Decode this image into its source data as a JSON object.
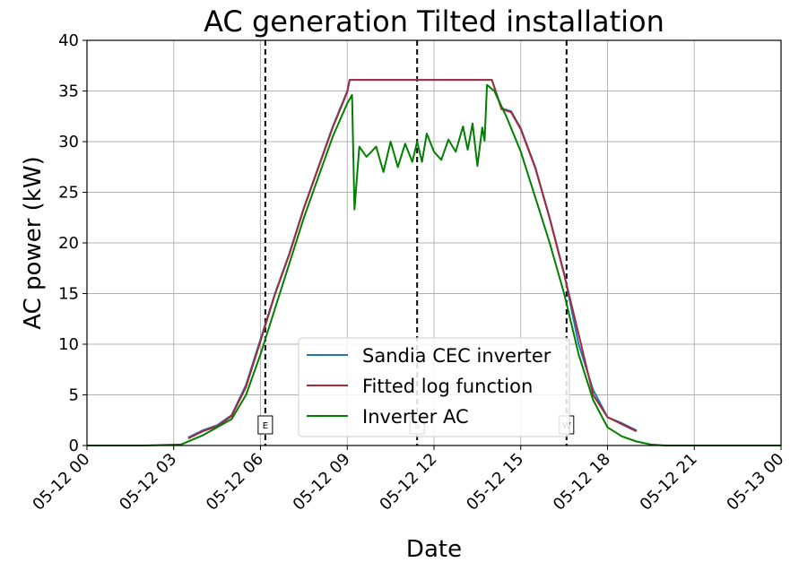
{
  "chart_data": {
    "type": "line",
    "title": "AC generation Tilted installation",
    "xlabel": "Date",
    "ylabel": "AC power (kW)",
    "xlim": [
      "05-12 00",
      "05-13 00"
    ],
    "ylim": [
      0,
      40
    ],
    "grid": true,
    "legend_position": "lower-center",
    "x_ticks": [
      "05-12 00",
      "05-12 03",
      "05-12 06",
      "05-12 09",
      "05-12 12",
      "05-12 15",
      "05-12 18",
      "05-12 21",
      "05-13 00"
    ],
    "y_ticks": [
      "0",
      "5",
      "10",
      "15",
      "20",
      "25",
      "30",
      "35",
      "40"
    ],
    "vertical_markers": [
      {
        "time": "05-12 06:10",
        "label": "E"
      },
      {
        "time": "05-12 11:25",
        "label": "S"
      },
      {
        "time": "05-12 16:35",
        "label": "W"
      }
    ],
    "series": [
      {
        "name": "Sandia CEC inverter",
        "color": "#1f77b4",
        "points": [
          [
            "05-12 03:30",
            0.8
          ],
          [
            "05-12 04:00",
            1.5
          ],
          [
            "05-12 04:30",
            2.0
          ],
          [
            "05-12 05:00",
            3.0
          ],
          [
            "05-12 05:30",
            6.0
          ],
          [
            "05-12 06:00",
            10.5
          ],
          [
            "05-12 06:30",
            15.0
          ],
          [
            "05-12 07:00",
            19.0
          ],
          [
            "05-12 07:30",
            23.5
          ],
          [
            "05-12 08:00",
            27.5
          ],
          [
            "05-12 08:30",
            31.5
          ],
          [
            "05-12 09:00",
            35.0
          ],
          [
            "05-12 09:05",
            36.1
          ],
          [
            "05-12 10:00",
            36.1
          ],
          [
            "05-12 11:00",
            36.1
          ],
          [
            "05-12 12:00",
            36.1
          ],
          [
            "05-12 13:00",
            36.1
          ],
          [
            "05-12 14:00",
            36.1
          ],
          [
            "05-12 14:20",
            33.3
          ],
          [
            "05-12 14:40",
            33.0
          ],
          [
            "05-12 15:00",
            31.3
          ],
          [
            "05-12 15:30",
            27.5
          ],
          [
            "05-12 16:00",
            22.5
          ],
          [
            "05-12 16:30",
            17.0
          ],
          [
            "05-12 17:00",
            10.0
          ],
          [
            "05-12 17:30",
            5.5
          ],
          [
            "05-12 18:00",
            2.8
          ],
          [
            "05-12 18:30",
            2.2
          ],
          [
            "05-12 19:00",
            1.5
          ]
        ]
      },
      {
        "name": "Fitted log function",
        "color": "#a52a3a",
        "points": [
          [
            "05-12 03:30",
            0.7
          ],
          [
            "05-12 04:00",
            1.4
          ],
          [
            "05-12 04:30",
            1.9
          ],
          [
            "05-12 05:00",
            2.9
          ],
          [
            "05-12 05:30",
            5.8
          ],
          [
            "05-12 06:00",
            10.3
          ],
          [
            "05-12 06:30",
            14.9
          ],
          [
            "05-12 07:00",
            18.9
          ],
          [
            "05-12 07:30",
            23.4
          ],
          [
            "05-12 08:00",
            27.4
          ],
          [
            "05-12 08:30",
            31.4
          ],
          [
            "05-12 09:00",
            34.9
          ],
          [
            "05-12 09:05",
            36.1
          ],
          [
            "05-12 10:00",
            36.1
          ],
          [
            "05-12 11:00",
            36.1
          ],
          [
            "05-12 12:00",
            36.1
          ],
          [
            "05-12 13:00",
            36.1
          ],
          [
            "05-12 14:00",
            36.1
          ],
          [
            "05-12 14:20",
            33.2
          ],
          [
            "05-12 14:40",
            32.9
          ],
          [
            "05-12 15:00",
            31.2
          ],
          [
            "05-12 15:30",
            27.4
          ],
          [
            "05-12 16:00",
            22.4
          ],
          [
            "05-12 16:30",
            16.9
          ],
          [
            "05-12 17:00",
            11.0
          ],
          [
            "05-12 17:30",
            5.0
          ],
          [
            "05-12 18:00",
            2.8
          ],
          [
            "05-12 18:30",
            2.1
          ],
          [
            "05-12 19:00",
            1.4
          ]
        ]
      },
      {
        "name": "Inverter AC",
        "color": "#008000",
        "points": [
          [
            "05-12 00:00",
            0.0
          ],
          [
            "05-12 02:00",
            0.0
          ],
          [
            "05-12 03:15",
            0.1
          ],
          [
            "05-12 04:00",
            1.0
          ],
          [
            "05-12 04:30",
            1.8
          ],
          [
            "05-12 05:00",
            2.6
          ],
          [
            "05-12 05:30",
            5.0
          ],
          [
            "05-12 06:00",
            9.0
          ],
          [
            "05-12 06:30",
            13.5
          ],
          [
            "05-12 07:00",
            18.0
          ],
          [
            "05-12 07:30",
            22.5
          ],
          [
            "05-12 08:00",
            26.5
          ],
          [
            "05-12 08:30",
            30.5
          ],
          [
            "05-12 09:00",
            33.8
          ],
          [
            "05-12 09:10",
            34.6
          ],
          [
            "05-12 09:15",
            23.3
          ],
          [
            "05-12 09:25",
            29.5
          ],
          [
            "05-12 09:40",
            28.5
          ],
          [
            "05-12 10:00",
            29.5
          ],
          [
            "05-12 10:15",
            27.0
          ],
          [
            "05-12 10:30",
            30.0
          ],
          [
            "05-12 10:45",
            27.5
          ],
          [
            "05-12 11:00",
            29.8
          ],
          [
            "05-12 11:15",
            28.0
          ],
          [
            "05-12 11:25",
            30.0
          ],
          [
            "05-12 11:35",
            28.0
          ],
          [
            "05-12 11:45",
            30.8
          ],
          [
            "05-12 12:00",
            29.0
          ],
          [
            "05-12 12:15",
            28.2
          ],
          [
            "05-12 12:30",
            30.2
          ],
          [
            "05-12 12:45",
            29.0
          ],
          [
            "05-12 13:00",
            31.5
          ],
          [
            "05-12 13:10",
            29.2
          ],
          [
            "05-12 13:20",
            31.8
          ],
          [
            "05-12 13:30",
            27.6
          ],
          [
            "05-12 13:40",
            31.4
          ],
          [
            "05-12 13:45",
            30.1
          ],
          [
            "05-12 13:50",
            35.6
          ],
          [
            "05-12 14:05",
            35.0
          ],
          [
            "05-12 14:30",
            32.5
          ],
          [
            "05-12 15:00",
            29.0
          ],
          [
            "05-12 15:30",
            24.5
          ],
          [
            "05-12 16:00",
            20.0
          ],
          [
            "05-12 16:30",
            15.0
          ],
          [
            "05-12 17:00",
            9.0
          ],
          [
            "05-12 17:30",
            4.5
          ],
          [
            "05-12 18:00",
            1.8
          ],
          [
            "05-12 18:30",
            0.9
          ],
          [
            "05-12 19:00",
            0.4
          ],
          [
            "05-12 19:30",
            0.1
          ],
          [
            "05-12 20:00",
            0.0
          ],
          [
            "05-12 24:00",
            0.0
          ]
        ]
      }
    ]
  }
}
